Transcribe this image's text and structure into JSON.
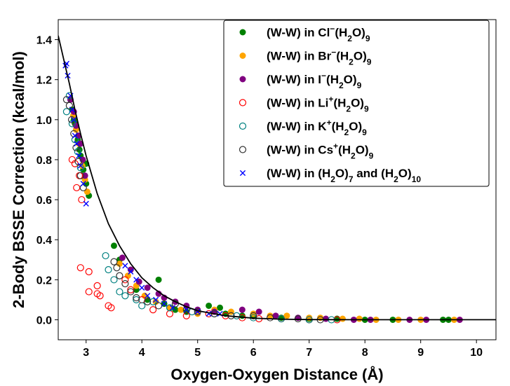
{
  "chart_data": {
    "type": "scatter",
    "xlabel": "Oxygen-Oxygen Distance (Å)",
    "ylabel": "2-Body BSSE Correction (kcal/mol)",
    "xlim": [
      2.5,
      10.35
    ],
    "ylim": [
      -0.1,
      1.5
    ],
    "xticks": [
      3,
      4,
      5,
      6,
      7,
      8,
      9,
      10
    ],
    "yticks": [
      0.0,
      0.2,
      0.4,
      0.6,
      0.8,
      1.0,
      1.2,
      1.4
    ],
    "legend_position": "top-right",
    "fit_curve": {
      "color": "#000000",
      "points": [
        [
          2.5,
          1.42
        ],
        [
          2.6,
          1.3
        ],
        [
          2.7,
          1.18
        ],
        [
          2.8,
          1.05
        ],
        [
          2.9,
          0.93
        ],
        [
          3.0,
          0.82
        ],
        [
          3.2,
          0.63
        ],
        [
          3.4,
          0.48
        ],
        [
          3.6,
          0.37
        ],
        [
          3.8,
          0.28
        ],
        [
          4.0,
          0.21
        ],
        [
          4.2,
          0.16
        ],
        [
          4.4,
          0.12
        ],
        [
          4.6,
          0.09
        ],
        [
          4.8,
          0.065
        ],
        [
          5.0,
          0.045
        ],
        [
          5.5,
          0.02
        ],
        [
          6.0,
          0.008
        ],
        [
          6.5,
          0.003
        ],
        [
          7.0,
          0.001
        ],
        [
          8.0,
          0.0
        ],
        [
          10.35,
          0.0
        ]
      ]
    },
    "series": [
      {
        "name_base": "(W-W) in Cl",
        "name_sup": "−",
        "name_tail": "(H",
        "name_sub": "2",
        "name_end": "O)",
        "name_sub2": "9",
        "color": "#008000",
        "marker": "filled",
        "points": [
          [
            2.75,
            1.05
          ],
          [
            2.8,
            0.98
          ],
          [
            2.85,
            0.9
          ],
          [
            2.9,
            0.82
          ],
          [
            2.95,
            0.75
          ],
          [
            3.0,
            0.78
          ],
          [
            3.0,
            0.68
          ],
          [
            3.05,
            0.62
          ],
          [
            2.78,
            1.0
          ],
          [
            2.88,
            0.85
          ],
          [
            3.5,
            0.37
          ],
          [
            3.6,
            0.3
          ],
          [
            3.9,
            0.15
          ],
          [
            4.1,
            0.1
          ],
          [
            4.3,
            0.2
          ],
          [
            4.4,
            0.08
          ],
          [
            4.6,
            0.05
          ],
          [
            4.8,
            0.04
          ],
          [
            5.2,
            0.07
          ],
          [
            5.4,
            0.06
          ],
          [
            5.5,
            0.03
          ],
          [
            5.8,
            0.02
          ],
          [
            6.0,
            0.02
          ],
          [
            6.5,
            0.01
          ],
          [
            7.0,
            0.005
          ],
          [
            7.5,
            0.005
          ],
          [
            8.0,
            0.0
          ],
          [
            8.5,
            0.0
          ],
          [
            9.4,
            0.0
          ],
          [
            9.5,
            0.0
          ]
        ]
      },
      {
        "name_base": "(W-W) in Br",
        "name_sup": "−",
        "name_tail": "(H",
        "name_sub": "2",
        "name_end": "O)",
        "name_sub2": "9",
        "color": "#FFA500",
        "marker": "filled",
        "points": [
          [
            2.77,
            1.02
          ],
          [
            2.82,
            0.95
          ],
          [
            2.87,
            0.88
          ],
          [
            2.93,
            0.77
          ],
          [
            2.98,
            0.7
          ],
          [
            3.02,
            0.64
          ],
          [
            3.6,
            0.28
          ],
          [
            3.75,
            0.22
          ],
          [
            3.9,
            0.17
          ],
          [
            4.05,
            0.12
          ],
          [
            4.25,
            0.09
          ],
          [
            4.5,
            0.06
          ],
          [
            4.7,
            0.05
          ],
          [
            5.0,
            0.03
          ],
          [
            5.3,
            0.05
          ],
          [
            5.6,
            0.04
          ],
          [
            6.0,
            0.03
          ],
          [
            6.3,
            0.02
          ],
          [
            6.6,
            0.02
          ],
          [
            7.0,
            0.01
          ],
          [
            7.2,
            0.01
          ],
          [
            7.6,
            0.005
          ],
          [
            7.9,
            0.005
          ],
          [
            8.2,
            0.0
          ],
          [
            8.6,
            0.0
          ],
          [
            9.0,
            0.0
          ],
          [
            9.6,
            0.0
          ]
        ]
      },
      {
        "name_base": "(W-W) in I",
        "name_sup": "−",
        "name_tail": "(H",
        "name_sub": "2",
        "name_end": "O)",
        "name_sub2": "9",
        "color": "#800080",
        "marker": "filled",
        "points": [
          [
            2.72,
            1.1
          ],
          [
            2.78,
            1.04
          ],
          [
            2.82,
            0.97
          ],
          [
            2.86,
            0.92
          ],
          [
            2.9,
            0.88
          ],
          [
            2.94,
            0.8
          ],
          [
            2.98,
            0.72
          ],
          [
            3.65,
            0.31
          ],
          [
            3.8,
            0.25
          ],
          [
            3.95,
            0.19
          ],
          [
            4.1,
            0.16
          ],
          [
            4.3,
            0.13
          ],
          [
            4.4,
            0.11
          ],
          [
            4.6,
            0.09
          ],
          [
            4.8,
            0.07
          ],
          [
            5.0,
            0.05
          ],
          [
            5.3,
            0.04
          ],
          [
            5.8,
            0.05
          ],
          [
            6.1,
            0.04
          ],
          [
            6.4,
            0.02
          ],
          [
            6.8,
            0.01
          ],
          [
            7.3,
            0.005
          ],
          [
            7.8,
            0.0
          ],
          [
            8.1,
            0.0
          ],
          [
            8.8,
            0.0
          ],
          [
            9.1,
            0.0
          ],
          [
            9.7,
            0.0
          ]
        ]
      },
      {
        "name_base": "(W-W) in Li",
        "name_sup": "+",
        "name_tail": "(H",
        "name_sub": "2",
        "name_end": "O)",
        "name_sub2": "9",
        "color": "#FF0000",
        "marker": "open",
        "points": [
          [
            2.75,
            0.8
          ],
          [
            2.8,
            0.78
          ],
          [
            2.83,
            0.66
          ],
          [
            2.88,
            0.72
          ],
          [
            2.92,
            0.6
          ],
          [
            2.9,
            0.26
          ],
          [
            3.05,
            0.24
          ],
          [
            3.05,
            0.14
          ],
          [
            3.2,
            0.17
          ],
          [
            3.2,
            0.13
          ],
          [
            3.25,
            0.12
          ],
          [
            3.4,
            0.07
          ],
          [
            3.45,
            0.06
          ],
          [
            3.7,
            0.2
          ],
          [
            3.8,
            0.15
          ],
          [
            4.0,
            0.1
          ],
          [
            4.2,
            0.05
          ],
          [
            4.5,
            0.03
          ],
          [
            4.8,
            0.02
          ],
          [
            5.2,
            0.03
          ],
          [
            5.5,
            0.02
          ],
          [
            5.8,
            0.01
          ],
          [
            6.1,
            0.005
          ],
          [
            6.5,
            0.005
          ],
          [
            7.0,
            0.0
          ],
          [
            7.5,
            0.0
          ]
        ]
      },
      {
        "name_base": "(W-W) in K",
        "name_sup": "+",
        "name_tail": "(H",
        "name_sub": "2",
        "name_end": "O)",
        "name_sub2": "9",
        "color": "#008080",
        "marker": "open",
        "points": [
          [
            2.65,
            1.04
          ],
          [
            2.7,
            1.12
          ],
          [
            2.75,
            0.98
          ],
          [
            2.8,
            0.9
          ],
          [
            2.85,
            0.84
          ],
          [
            2.9,
            0.76
          ],
          [
            3.35,
            0.32
          ],
          [
            3.4,
            0.25
          ],
          [
            3.5,
            0.2
          ],
          [
            3.6,
            0.14
          ],
          [
            3.7,
            0.12
          ],
          [
            3.9,
            0.1
          ],
          [
            4.0,
            0.07
          ],
          [
            4.2,
            0.09
          ],
          [
            4.5,
            0.06
          ],
          [
            4.9,
            0.04
          ],
          [
            5.3,
            0.03
          ],
          [
            5.7,
            0.02
          ],
          [
            6.0,
            0.01
          ],
          [
            6.5,
            0.005
          ],
          [
            7.0,
            0.0
          ],
          [
            7.4,
            0.0
          ]
        ]
      },
      {
        "name_base": "(W-W) in Cs",
        "name_sup": "+",
        "name_tail": "(H",
        "name_sub": "2",
        "name_end": "O)",
        "name_sub2": "9",
        "color": "#333333",
        "marker": "open",
        "points": [
          [
            2.65,
            1.1
          ],
          [
            2.7,
            1.07
          ],
          [
            2.74,
            1.0
          ],
          [
            2.78,
            0.93
          ],
          [
            2.82,
            0.86
          ],
          [
            2.86,
            0.79
          ],
          [
            2.9,
            0.72
          ],
          [
            2.95,
            0.66
          ],
          [
            3.5,
            0.29
          ],
          [
            3.55,
            0.26
          ],
          [
            3.6,
            0.22
          ],
          [
            3.7,
            0.18
          ],
          [
            3.8,
            0.14
          ],
          [
            3.9,
            0.11
          ],
          [
            4.1,
            0.09
          ],
          [
            4.3,
            0.07
          ],
          [
            4.6,
            0.08
          ],
          [
            4.8,
            0.05
          ],
          [
            5.0,
            0.04
          ],
          [
            5.3,
            0.03
          ],
          [
            5.6,
            0.02
          ],
          [
            6.0,
            0.02
          ],
          [
            6.3,
            0.01
          ],
          [
            6.8,
            0.005
          ],
          [
            7.2,
            0.0
          ]
        ]
      },
      {
        "name_base": "(W-W) in (H",
        "name_sup": "",
        "name_tail": "",
        "name_sub": "2",
        "name_end": "O)",
        "name_sub2": "7",
        "name_extra": " and (H",
        "name_sub3": "2",
        "name_end2": "O)",
        "name_sub4": "10",
        "color": "#0000FF",
        "marker": "x",
        "points": [
          [
            2.63,
            1.27
          ],
          [
            2.65,
            1.28
          ],
          [
            2.67,
            1.22
          ],
          [
            2.72,
            1.12
          ],
          [
            2.75,
            1.05
          ],
          [
            2.78,
            1.0
          ],
          [
            2.8,
            0.92
          ],
          [
            2.83,
            0.88
          ],
          [
            2.87,
            0.82
          ],
          [
            2.9,
            0.77
          ],
          [
            2.95,
            0.68
          ],
          [
            3.0,
            0.58
          ],
          [
            3.7,
            0.27
          ],
          [
            3.8,
            0.24
          ],
          [
            3.9,
            0.2
          ],
          [
            4.0,
            0.16
          ],
          [
            4.1,
            0.12
          ],
          [
            4.25,
            0.1
          ],
          [
            4.4,
            0.08
          ],
          [
            4.55,
            0.06
          ],
          [
            4.8,
            0.05
          ],
          [
            5.0,
            0.04
          ],
          [
            5.2,
            0.03
          ],
          [
            5.4,
            0.03
          ]
        ]
      }
    ]
  }
}
